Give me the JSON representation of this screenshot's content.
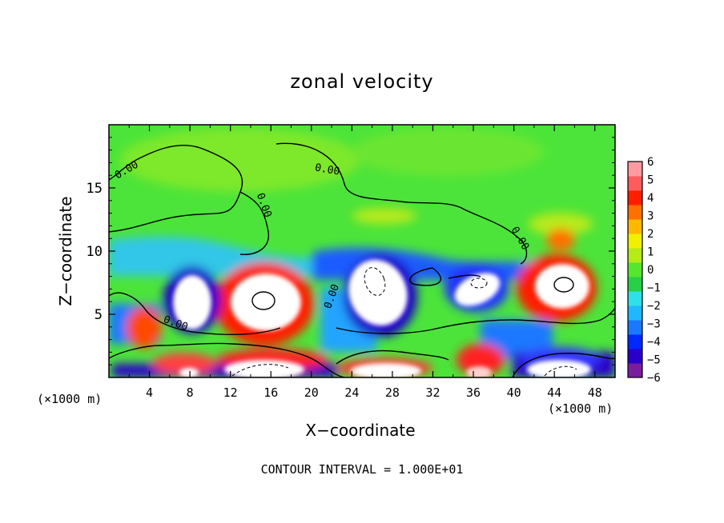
{
  "chart_data": {
    "type": "heatmap",
    "title": "zonal velocity",
    "xlabel": "X−coordinate",
    "ylabel": "Z−coordinate",
    "x_unit_label": "(×1000 m)",
    "x_unit_label_right": "(×1000 m)",
    "xlim": [
      0,
      50
    ],
    "ylim": [
      0,
      20
    ],
    "x_ticks": [
      "4",
      "8",
      "12",
      "16",
      "20",
      "24",
      "28",
      "32",
      "36",
      "40",
      "44",
      "48"
    ],
    "y_ticks": [
      "5",
      "10",
      "15"
    ],
    "colorbar": {
      "labels": [
        "6",
        "5",
        "4",
        "3",
        "2",
        "1",
        "0",
        "−1",
        "−2",
        "−3",
        "−4",
        "−5",
        "−6"
      ],
      "min": -6,
      "max": 6,
      "colors": [
        "#7a1d9c",
        "#2a00c8",
        "#0028ff",
        "#1a78ff",
        "#20b8ff",
        "#30e0e8",
        "#28d048",
        "#55e62e",
        "#b4ec18",
        "#f0f000",
        "#ffb800",
        "#ff7000",
        "#ff1e00",
        "#ff5c5c",
        "#ff9aa0"
      ]
    },
    "contour_labels": [
      "0.00"
    ],
    "footnote": "CONTOUR INTERVAL = 1.000E+01",
    "features": [
      {
        "label": "0.00"
      }
    ]
  }
}
